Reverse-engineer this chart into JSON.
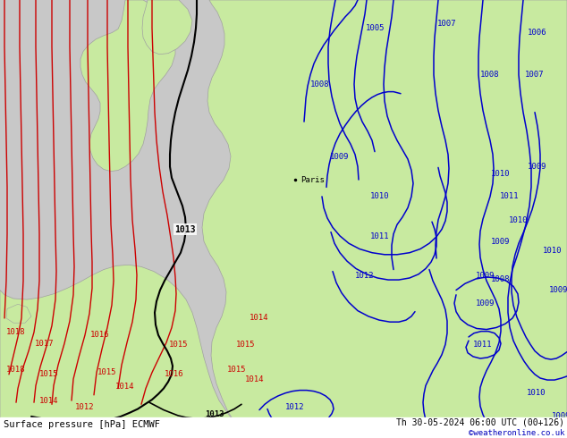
{
  "title_left": "Surface pressure [hPa] ECMWF",
  "title_right": "Th 30-05-2024 06:00 UTC (00+126)",
  "credit": "©weatheronline.co.uk",
  "bg_color": "#d0d0d0",
  "land_color": "#c8eaa0",
  "border_color": "#a0a0a0",
  "blue": "#0000cc",
  "red": "#cc0000",
  "black": "#000000",
  "white": "#ffffff"
}
